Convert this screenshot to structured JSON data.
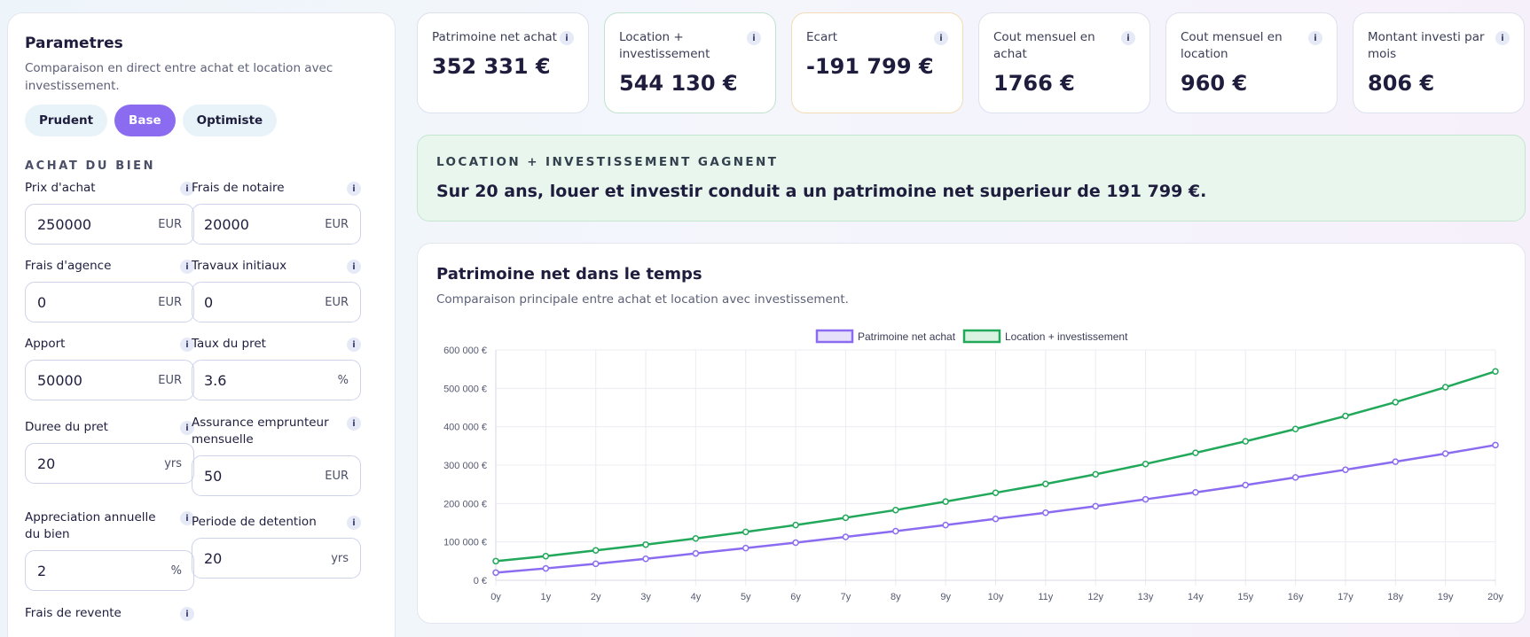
{
  "sidebar": {
    "title": "Parametres",
    "subtitle": "Comparaison en direct entre achat et location avec investissement.",
    "presets": [
      "Prudent",
      "Base",
      "Optimiste"
    ],
    "active_preset": "Base",
    "section_title": "ACHAT DU BIEN",
    "fields": [
      {
        "label": "Prix d'achat",
        "value": "250000",
        "unit": "EUR"
      },
      {
        "label": "Frais de notaire",
        "value": "20000",
        "unit": "EUR"
      },
      {
        "label": "Frais d'agence",
        "value": "0",
        "unit": "EUR"
      },
      {
        "label": "Travaux initiaux",
        "value": "0",
        "unit": "EUR"
      },
      {
        "label": "Apport",
        "value": "50000",
        "unit": "EUR"
      },
      {
        "label": "Taux du pret",
        "value": "3.6",
        "unit": "%"
      },
      {
        "label": "Duree du pret",
        "value": "20",
        "unit": "yrs"
      },
      {
        "label": "Assurance emprunteur mensuelle",
        "value": "50",
        "unit": "EUR"
      },
      {
        "label": "Appreciation annuelle du bien",
        "value": "2",
        "unit": "%"
      },
      {
        "label": "Periode de detention",
        "value": "20",
        "unit": "yrs"
      },
      {
        "label": "Frais de revente"
      }
    ]
  },
  "kpis": [
    {
      "label": "Patrimoine net achat",
      "value": "352 331 €"
    },
    {
      "label": "Location + investissement",
      "value": "544 130 €"
    },
    {
      "label": "Ecart",
      "value": "-191 799 €"
    },
    {
      "label": "Cout mensuel en achat",
      "value": "1766 €"
    },
    {
      "label": "Cout mensuel en location",
      "value": "960 €"
    },
    {
      "label": "Montant investi par mois",
      "value": "806 €"
    }
  ],
  "info_glyph": "i",
  "banner": {
    "title": "LOCATION + INVESTISSEMENT GAGNENT",
    "text": "Sur 20 ans, louer et investir conduit a un patrimoine net superieur de 191 799 €."
  },
  "chart": {
    "title": "Patrimoine net dans le temps",
    "subtitle": "Comparaison principale entre achat et location avec investissement."
  },
  "colors": {
    "accent": "#8b6cf0",
    "buy": "#8b6cf0",
    "rent": "#22a85a",
    "positive_bg": "#e9f6ee"
  },
  "chart_data": {
    "type": "line",
    "x": [
      "0y",
      "1y",
      "2y",
      "3y",
      "4y",
      "5y",
      "6y",
      "7y",
      "8y",
      "9y",
      "10y",
      "11y",
      "12y",
      "13y",
      "14y",
      "15y",
      "16y",
      "17y",
      "18y",
      "19y",
      "20y"
    ],
    "y_ticks": [
      "0 €",
      "100 000 €",
      "200 000 €",
      "300 000 €",
      "400 000 €",
      "500 000 €",
      "600 000 €"
    ],
    "ylim": [
      0,
      600000
    ],
    "grid": true,
    "legend": "top-center",
    "series": [
      {
        "name": "Patrimoine net achat",
        "color": "#8b6cf0",
        "values": [
          20000,
          31000,
          43000,
          56000,
          70000,
          84000,
          98000,
          113000,
          128000,
          144000,
          160000,
          176000,
          193000,
          211000,
          229000,
          248000,
          268000,
          288000,
          309000,
          330000,
          352331
        ]
      },
      {
        "name": "Location + investissement",
        "color": "#22a85a",
        "values": [
          50000,
          63000,
          78000,
          93000,
          109000,
          126000,
          144000,
          163000,
          183000,
          205000,
          228000,
          251000,
          276000,
          303000,
          332000,
          362000,
          394000,
          428000,
          464000,
          503000,
          544130
        ]
      }
    ]
  }
}
